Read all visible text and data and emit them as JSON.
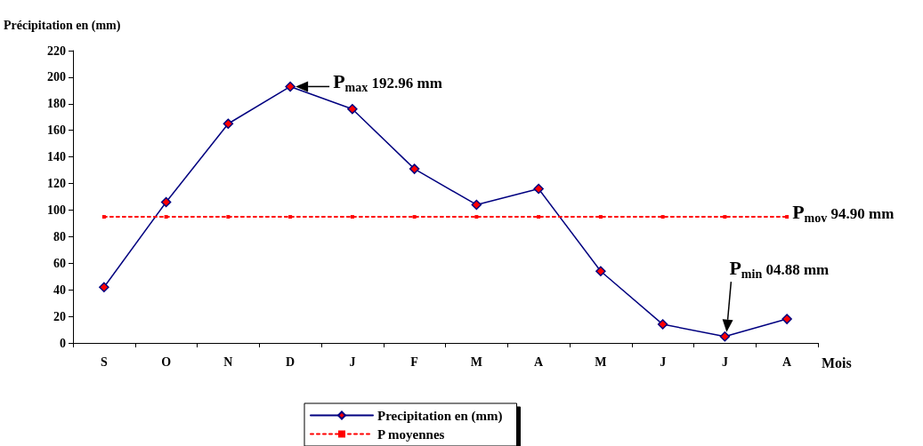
{
  "chart_data": {
    "type": "line",
    "ylabel": "Précipitation en (mm)",
    "xlabel": "Mois",
    "categories": [
      "S",
      "O",
      "N",
      "D",
      "J",
      "F",
      "M",
      "A",
      "M",
      "J",
      "J",
      "A"
    ],
    "series": [
      {
        "name": "Precipitation en (mm)",
        "color": "#000080",
        "marker": "diamond",
        "line_style": "solid",
        "values": [
          42,
          106,
          165,
          192.96,
          176,
          131,
          104,
          116,
          54,
          14,
          4.88,
          18
        ]
      },
      {
        "name": "P moyennes",
        "color": "#ff0000",
        "marker": "square",
        "line_style": "dotted",
        "values": [
          94.9,
          94.9,
          94.9,
          94.9,
          94.9,
          94.9,
          94.9,
          94.9,
          94.9,
          94.9,
          94.9,
          94.9
        ]
      }
    ],
    "ylim": [
      0,
      220
    ],
    "yticks": [
      0,
      20,
      40,
      60,
      80,
      100,
      120,
      140,
      160,
      180,
      200,
      220
    ],
    "grid": false,
    "legend": "bottom",
    "annotations": [
      {
        "text": "P$_{max}$ 192.96 mm",
        "x": "D",
        "y": 192.96
      },
      "P$_{mov}$ 94.90 mm",
      "P$_{min}$ 04.88 mm"
    ]
  }
}
